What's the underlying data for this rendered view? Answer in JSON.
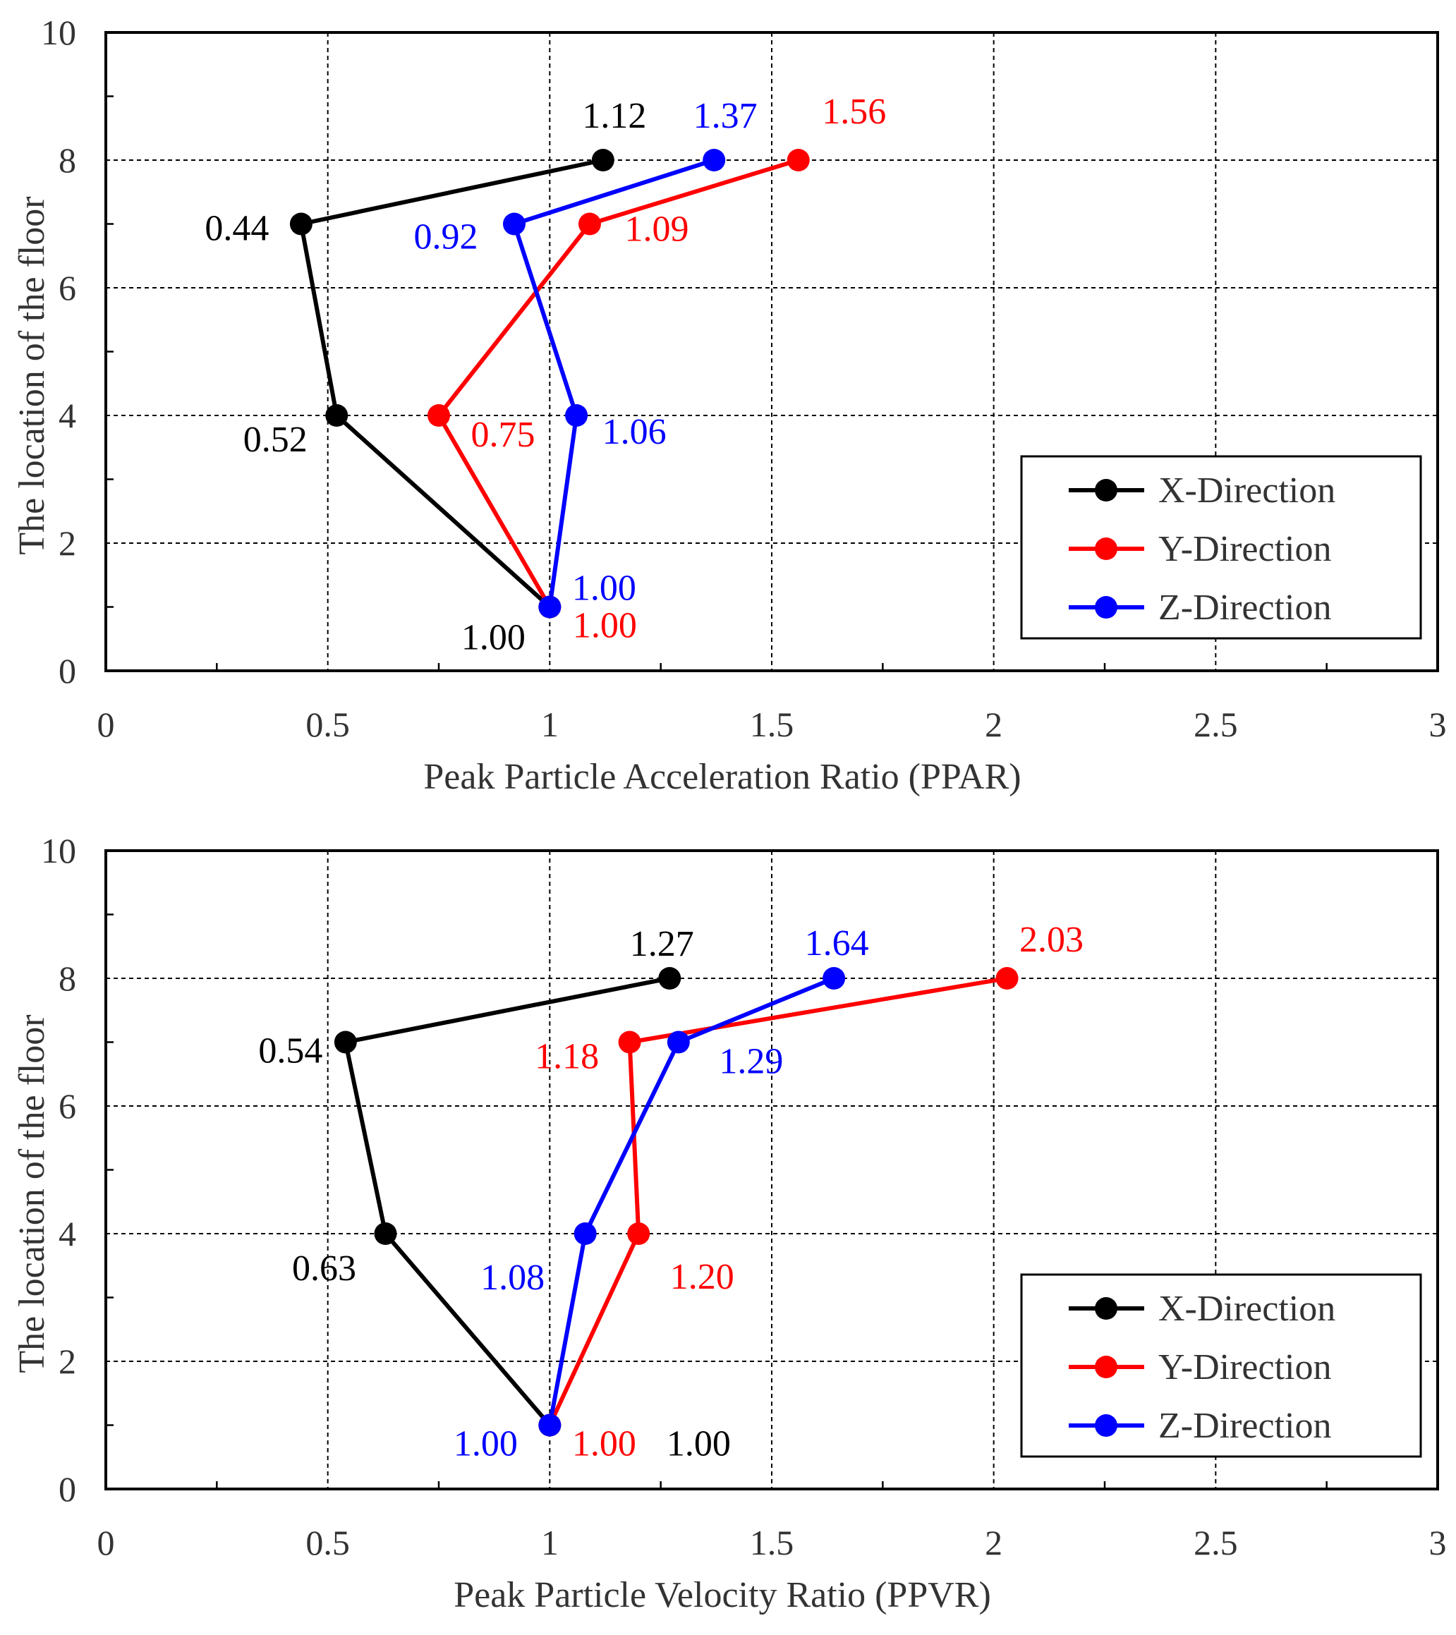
{
  "chart_data": [
    {
      "type": "line",
      "title": "",
      "xlabel": "Peak Particle Acceleration Ratio (PPAR)",
      "ylabel": "The location of the floor",
      "xlim": [
        0,
        3
      ],
      "ylim": [
        0,
        10
      ],
      "xticks": [
        "0",
        "0.5",
        "1",
        "1.5",
        "2",
        "2.5",
        "3"
      ],
      "yticks": [
        "0",
        "2",
        "4",
        "6",
        "8",
        "10"
      ],
      "grid": true,
      "legend_position": "bottom-right",
      "series": [
        {
          "name": "X-Direction",
          "color": "#000000",
          "points": [
            {
              "x": 1.0,
              "y": 1,
              "label": "1.00"
            },
            {
              "x": 0.52,
              "y": 4,
              "label": "0.52"
            },
            {
              "x": 0.44,
              "y": 7,
              "label": "0.44"
            },
            {
              "x": 1.12,
              "y": 8,
              "label": "1.12"
            }
          ]
        },
        {
          "name": "Y-Direction",
          "color": "#ff0000",
          "points": [
            {
              "x": 1.0,
              "y": 1,
              "label": "1.00"
            },
            {
              "x": 0.75,
              "y": 4,
              "label": "0.75"
            },
            {
              "x": 1.09,
              "y": 7,
              "label": "1.09"
            },
            {
              "x": 1.56,
              "y": 8,
              "label": "1.56"
            }
          ]
        },
        {
          "name": "Z-Direction",
          "color": "#0000ff",
          "points": [
            {
              "x": 1.0,
              "y": 1,
              "label": "1.00"
            },
            {
              "x": 1.06,
              "y": 4,
              "label": "1.06"
            },
            {
              "x": 0.92,
              "y": 7,
              "label": "0.92"
            },
            {
              "x": 1.37,
              "y": 8,
              "label": "1.37"
            }
          ]
        }
      ]
    },
    {
      "type": "line",
      "title": "",
      "xlabel": "Peak Particle Velocity Ratio (PPVR)",
      "ylabel": "The location of the floor",
      "xlim": [
        0,
        3
      ],
      "ylim": [
        0,
        10
      ],
      "xticks": [
        "0",
        "0.5",
        "1",
        "1.5",
        "2",
        "2.5",
        "3"
      ],
      "yticks": [
        "0",
        "2",
        "4",
        "6",
        "8",
        "10"
      ],
      "grid": true,
      "legend_position": "bottom-right",
      "series": [
        {
          "name": "X-Direction",
          "color": "#000000",
          "points": [
            {
              "x": 1.0,
              "y": 1,
              "label": "1.00"
            },
            {
              "x": 0.63,
              "y": 4,
              "label": "0.63"
            },
            {
              "x": 0.54,
              "y": 7,
              "label": "0.54"
            },
            {
              "x": 1.27,
              "y": 8,
              "label": "1.27"
            }
          ]
        },
        {
          "name": "Y-Direction",
          "color": "#ff0000",
          "points": [
            {
              "x": 1.0,
              "y": 1,
              "label": "1.00"
            },
            {
              "x": 1.2,
              "y": 4,
              "label": "1.20"
            },
            {
              "x": 1.18,
              "y": 7,
              "label": "1.18"
            },
            {
              "x": 2.03,
              "y": 8,
              "label": "2.03"
            }
          ]
        },
        {
          "name": "Z-Direction",
          "color": "#0000ff",
          "points": [
            {
              "x": 1.0,
              "y": 1,
              "label": "1.00"
            },
            {
              "x": 1.08,
              "y": 4,
              "label": "1.08"
            },
            {
              "x": 1.29,
              "y": 7,
              "label": "1.29"
            },
            {
              "x": 1.64,
              "y": 8,
              "label": "1.64"
            }
          ]
        }
      ]
    }
  ]
}
